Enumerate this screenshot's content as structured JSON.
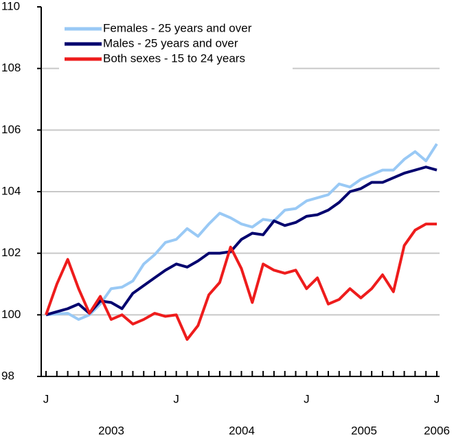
{
  "chart_data": {
    "type": "line",
    "categories": [
      "J",
      null,
      null,
      null,
      null,
      null,
      null,
      null,
      null,
      null,
      null,
      null,
      "J",
      null,
      null,
      null,
      null,
      null,
      null,
      null,
      null,
      null,
      null,
      null,
      "J",
      null,
      null,
      null,
      null,
      null,
      null,
      null,
      null,
      null,
      null,
      null,
      "J"
    ],
    "year_labels": [
      "2003",
      "2004",
      "2005",
      "2006"
    ],
    "series": [
      {
        "name": "Females - 25 years and over",
        "color": "#99c9f5",
        "values": [
          100,
          100.03,
          100.05,
          99.85,
          100.0,
          100.35,
          100.85,
          100.9,
          101.1,
          101.65,
          101.95,
          102.35,
          102.45,
          102.8,
          102.55,
          102.95,
          103.3,
          103.15,
          102.95,
          102.85,
          103.1,
          103.05,
          103.4,
          103.45,
          103.7,
          103.8,
          103.9,
          104.25,
          104.15,
          104.4,
          104.55,
          104.7,
          104.7,
          105.05,
          105.3,
          105.0,
          105.55
        ]
      },
      {
        "name": "Males - 25 years and over",
        "color": "#00006e",
        "values": [
          100,
          100.1,
          100.2,
          100.35,
          100.05,
          100.45,
          100.4,
          100.2,
          100.7,
          100.95,
          101.2,
          101.45,
          101.65,
          101.55,
          101.75,
          102.0,
          102.0,
          102.05,
          102.45,
          102.65,
          102.6,
          103.05,
          102.9,
          103.0,
          103.2,
          103.25,
          103.4,
          103.65,
          104.0,
          104.1,
          104.3,
          104.3,
          104.45,
          104.6,
          104.7,
          104.8,
          104.7
        ]
      },
      {
        "name": "Both sexes - 15 to 24 years",
        "color": "#ee1c1c",
        "values": [
          100,
          101.0,
          101.8,
          100.85,
          100.05,
          100.6,
          99.85,
          100.0,
          99.7,
          99.85,
          100.05,
          99.95,
          100.0,
          99.2,
          99.65,
          100.65,
          101.05,
          102.2,
          101.5,
          100.4,
          101.65,
          101.45,
          101.35,
          101.45,
          100.85,
          101.2,
          100.35,
          100.5,
          100.85,
          100.55,
          100.85,
          101.3,
          100.75,
          102.25,
          102.75,
          102.95,
          102.95
        ]
      }
    ],
    "ylim": [
      98,
      110
    ],
    "yticks": [
      98,
      100,
      102,
      104,
      106,
      108,
      110
    ],
    "grid": true,
    "legend": "upper left"
  }
}
